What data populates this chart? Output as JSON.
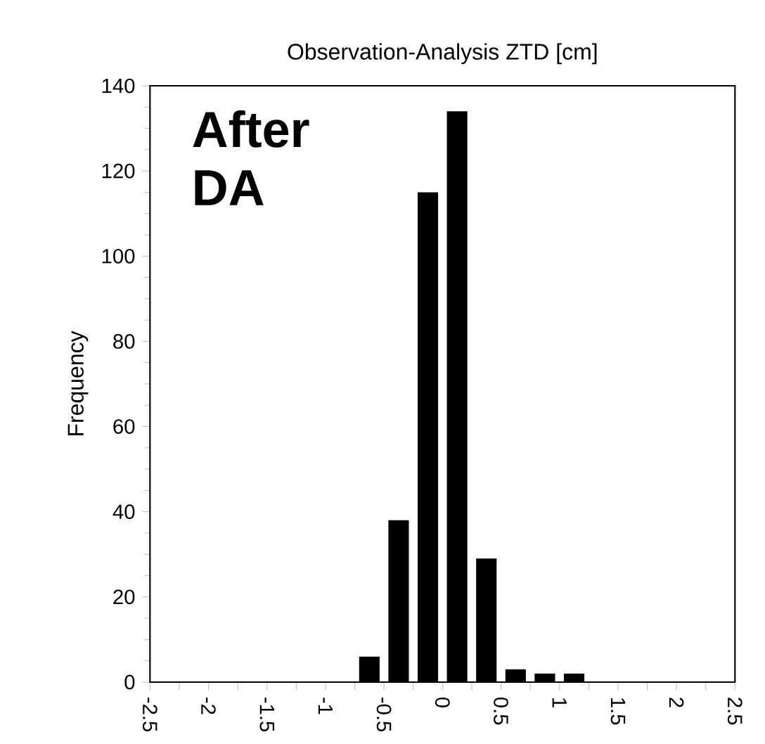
{
  "chart_data": {
    "type": "histogram",
    "title": "Observation-Analysis ZTD [cm]",
    "ylabel": "Frequency",
    "annotations": [
      "After DA"
    ],
    "bins": [
      -0.75,
      -0.5,
      -0.25,
      0,
      0.25,
      0.5,
      0.75,
      1,
      1.25
    ],
    "values": [
      6,
      38,
      115,
      134,
      29,
      3,
      2,
      2
    ],
    "color": "#000000",
    "xlim": [
      -2.5,
      2.5
    ],
    "ylim": [
      0,
      140
    ],
    "xticks": [
      -2.5,
      {
        "value": -2.25,
        "label": null
      },
      -2,
      {
        "value": -1.75,
        "label": null
      },
      -1.5,
      {
        "value": -1.25,
        "label": null
      },
      -1,
      {
        "value": -0.75,
        "label": null
      },
      -0.5,
      {
        "value": -0.25,
        "label": null
      },
      0,
      {
        "value": 0.25,
        "label": null
      },
      0.5,
      {
        "value": 0.75,
        "label": null
      },
      1,
      {
        "value": 1.25,
        "label": null
      },
      1.5,
      {
        "value": 1.75,
        "label": null
      },
      2,
      {
        "value": 2.25,
        "label": null
      },
      2.5
    ],
    "yticks": [
      0,
      20,
      40,
      60,
      80,
      100,
      120,
      140
    ]
  }
}
